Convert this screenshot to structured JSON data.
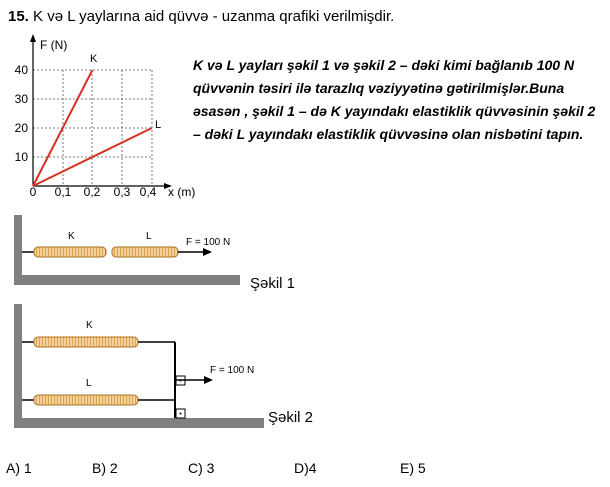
{
  "question": {
    "number": "15.",
    "title": "K və L yaylarına aid qüvvə - uzanma qrafiki verilmişdir.",
    "text": "K və L yayları şəkil 1 və şəkil 2 – dəki kimi bağlanıb 100 N qüvvənin təsiri ilə tarazlıq vəziyyətinə gətirilmişlər.Buna əsasən , şəkil 1 – də K yayındakı elastiklik qüvvəsinin şəkil 2 – dəki L yayındakı elastiklik qüvvəsinə olan nisbətini tapın."
  },
  "graph": {
    "y_axis_label": "F (N)",
    "x_axis_label": "x (m)",
    "y_ticks": [
      "10",
      "20",
      "30",
      "40"
    ],
    "x_ticks": [
      "0",
      "0,1",
      "0,2",
      "0,3",
      "0,4"
    ],
    "line_k_label": "K",
    "line_l_label": "L",
    "line_color": "#d93025"
  },
  "chart_data": {
    "type": "line",
    "xlabel": "x (m)",
    "ylabel": "F (N)",
    "xlim": [
      0,
      0.45
    ],
    "ylim": [
      0,
      42
    ],
    "series": [
      {
        "name": "K",
        "x": [
          0,
          0.2
        ],
        "y": [
          0,
          40
        ]
      },
      {
        "name": "L",
        "x": [
          0,
          0.4
        ],
        "y": [
          0,
          20
        ]
      }
    ]
  },
  "figure1": {
    "spring_k_label": "K",
    "spring_l_label": "L",
    "force_label": "F = 100 N",
    "caption": "Şəkil 1"
  },
  "figure2": {
    "spring_k_label": "K",
    "spring_l_label": "L",
    "force_label": "F = 100 N",
    "caption": "Şəkil 2"
  },
  "options": [
    "A) 1",
    "B) 2",
    "C) 3",
    "D)4",
    "E) 5"
  ]
}
